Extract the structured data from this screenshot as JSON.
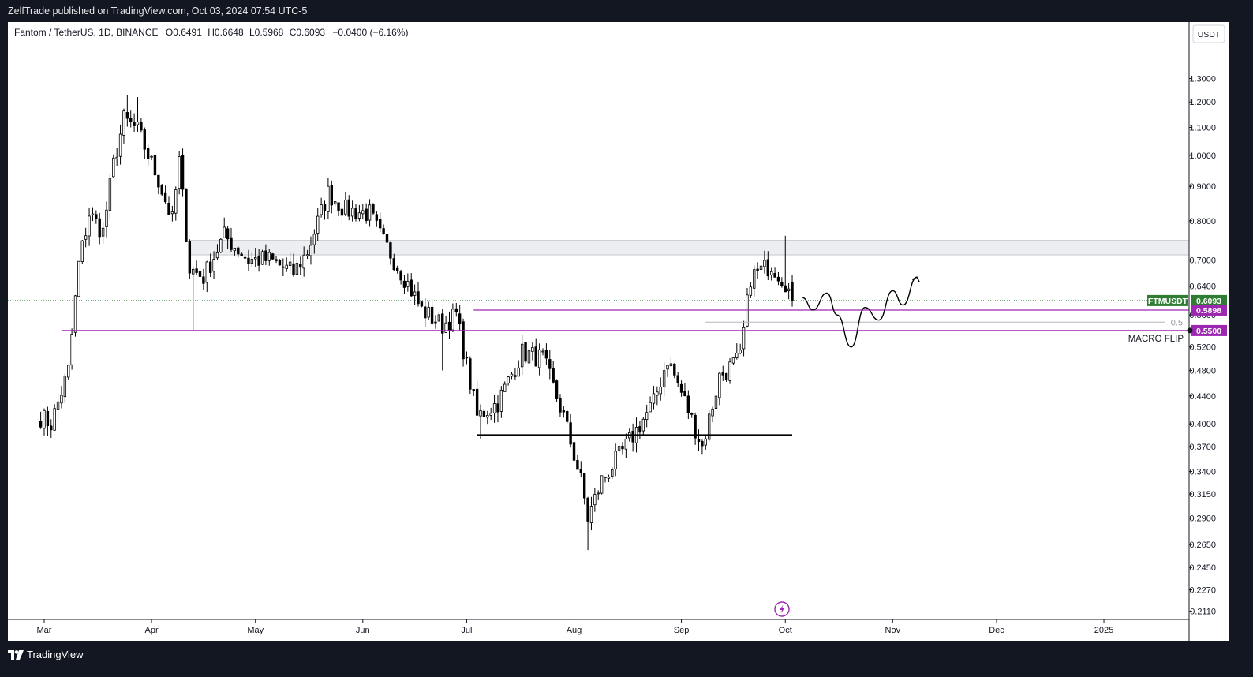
{
  "header": {
    "publisher": "ZelfTrade published on TradingView.com, Oct 03, 2024 07:54 UTC-5"
  },
  "footer": {
    "brand": "TradingView"
  },
  "legend": {
    "symbol": "Fantom / TetherUS, 1D, BINANCE",
    "o_label": "O",
    "o": "0.6491",
    "h_label": "H",
    "h": "0.6648",
    "l_label": "L",
    "l": "0.5968",
    "c_label": "C",
    "c": "0.6093",
    "change": "−0.0400 (−6.16%)"
  },
  "price_axis": {
    "currency_button": "USDT",
    "ticks": [
      "1.3000",
      "1.2000",
      "1.1000",
      "1.0000",
      "0.9000",
      "0.8000",
      "0.7000",
      "0.6400",
      "0.5800",
      "0.5200",
      "0.4800",
      "0.4400",
      "0.4000",
      "0.3700",
      "0.3400",
      "0.3150",
      "0.2900",
      "0.2650",
      "0.2450",
      "0.2270",
      "0.2110"
    ],
    "labels": {
      "symbol_tag": "FTMUSDT",
      "last_price": "0.6093",
      "level_upper": "0.5898",
      "level_lower": "0.5500"
    }
  },
  "time_axis": {
    "ticks": [
      "Mar",
      "Apr",
      "May",
      "Jun",
      "Jul",
      "Aug",
      "Sep",
      "Oct",
      "Nov",
      "Dec",
      "2025"
    ]
  },
  "annotations": {
    "macro_flip": "MACRO FLIP",
    "fib_level": "0.5"
  },
  "colors": {
    "background": "#ffffff",
    "frame": "#131722",
    "candle_up": "#ffffff",
    "candle_down": "#000000",
    "candle_border": "#000000",
    "level_lines": "#9c27b0",
    "last_price_tag": "#2e7d32",
    "zone_fill": "#eceef2",
    "axis_text": "#131722"
  },
  "chart_data": {
    "type": "candlestick",
    "title": "Fantom / TetherUS, 1D, BINANCE",
    "y_scale": "log",
    "ylim": [
      0.208,
      1.37
    ],
    "last_price": 0.6093,
    "ohlc_last": {
      "open": 0.6491,
      "high": 0.6648,
      "low": 0.5968,
      "close": 0.6093,
      "change": -0.04,
      "change_pct": -6.16
    },
    "horizontal_levels": [
      {
        "label": "0.5898",
        "value": 0.5898,
        "start": "2024-07-03"
      },
      {
        "label": "0.5500",
        "value": 0.55,
        "start": "2024-03-06",
        "note": "MACRO FLIP"
      }
    ],
    "fib_levels": [
      {
        "ratio": "0.5",
        "value": 0.566
      }
    ],
    "support_line": {
      "value": 0.385,
      "from": "2024-07-04",
      "to": "2024-10-03"
    },
    "resistance_zone": {
      "low": 0.712,
      "high": 0.748,
      "from": "2024-04-12"
    },
    "projection_path": [
      {
        "date": "2024-10-06",
        "price": 0.615
      },
      {
        "date": "2024-10-09",
        "price": 0.59
      },
      {
        "date": "2024-10-13",
        "price": 0.625
      },
      {
        "date": "2024-10-16",
        "price": 0.58
      },
      {
        "date": "2024-10-20",
        "price": 0.52
      },
      {
        "date": "2024-10-24",
        "price": 0.595
      },
      {
        "date": "2024-10-28",
        "price": 0.57
      },
      {
        "date": "2024-11-01",
        "price": 0.63
      },
      {
        "date": "2024-11-04",
        "price": 0.6
      },
      {
        "date": "2024-11-08",
        "price": 0.66
      }
    ],
    "series_close_anchors": [
      {
        "date": "2024-02-29",
        "close": 0.41
      },
      {
        "date": "2024-03-03",
        "close": 0.4
      },
      {
        "date": "2024-03-08",
        "close": 0.48
      },
      {
        "date": "2024-03-11",
        "close": 0.69
      },
      {
        "date": "2024-03-14",
        "close": 0.82
      },
      {
        "date": "2024-03-18",
        "close": 0.77
      },
      {
        "date": "2024-03-21",
        "close": 0.97
      },
      {
        "date": "2024-03-24",
        "close": 1.13
      },
      {
        "date": "2024-03-28",
        "close": 1.09
      },
      {
        "date": "2024-04-03",
        "close": 0.92
      },
      {
        "date": "2024-04-07",
        "close": 0.8
      },
      {
        "date": "2024-04-09",
        "close": 0.98
      },
      {
        "date": "2024-04-12",
        "close": 0.68
      },
      {
        "date": "2024-04-16",
        "close": 0.66
      },
      {
        "date": "2024-04-22",
        "close": 0.76
      },
      {
        "date": "2024-04-29",
        "close": 0.7
      },
      {
        "date": "2024-05-05",
        "close": 0.7
      },
      {
        "date": "2024-05-12",
        "close": 0.67
      },
      {
        "date": "2024-05-16",
        "close": 0.72
      },
      {
        "date": "2024-05-22",
        "close": 0.88
      },
      {
        "date": "2024-05-27",
        "close": 0.83
      },
      {
        "date": "2024-06-03",
        "close": 0.82
      },
      {
        "date": "2024-06-06",
        "close": 0.76
      },
      {
        "date": "2024-06-13",
        "close": 0.66
      },
      {
        "date": "2024-06-18",
        "close": 0.59
      },
      {
        "date": "2024-06-24",
        "close": 0.56
      },
      {
        "date": "2024-06-28",
        "close": 0.58
      },
      {
        "date": "2024-07-04",
        "close": 0.41
      },
      {
        "date": "2024-07-10",
        "close": 0.43
      },
      {
        "date": "2024-07-17",
        "close": 0.51
      },
      {
        "date": "2024-07-23",
        "close": 0.5
      },
      {
        "date": "2024-07-29",
        "close": 0.41
      },
      {
        "date": "2024-08-03",
        "close": 0.33
      },
      {
        "date": "2024-08-05",
        "close": 0.29
      },
      {
        "date": "2024-08-09",
        "close": 0.33
      },
      {
        "date": "2024-08-16",
        "close": 0.37
      },
      {
        "date": "2024-08-24",
        "close": 0.43
      },
      {
        "date": "2024-08-28",
        "close": 0.5
      },
      {
        "date": "2024-09-03",
        "close": 0.42
      },
      {
        "date": "2024-09-07",
        "close": 0.37
      },
      {
        "date": "2024-09-12",
        "close": 0.47
      },
      {
        "date": "2024-09-18",
        "close": 0.5
      },
      {
        "date": "2024-09-21",
        "close": 0.66
      },
      {
        "date": "2024-09-27",
        "close": 0.69
      },
      {
        "date": "2024-10-01",
        "close": 0.65
      },
      {
        "date": "2024-10-03",
        "close": 0.6093
      }
    ]
  }
}
